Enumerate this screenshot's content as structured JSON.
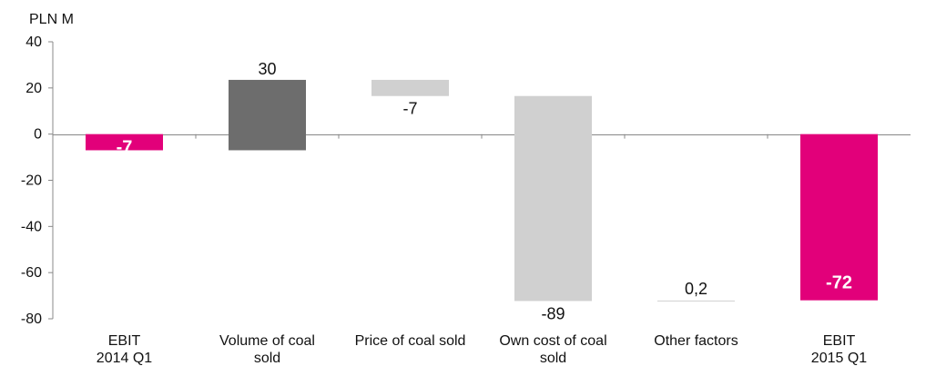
{
  "chart_data": {
    "type": "bar",
    "subtype": "waterfall",
    "unit_label": "PLN M",
    "ylim": [
      -80,
      40
    ],
    "yticks": [
      40,
      20,
      0,
      -20,
      -40,
      -60,
      -80
    ],
    "grid": false,
    "categories": [
      [
        "EBIT",
        "2014 Q1"
      ],
      [
        "Volume of coal",
        "sold"
      ],
      [
        "Price of coal sold"
      ],
      [
        "Own cost of coal",
        "sold"
      ],
      [
        "Other factors"
      ],
      [
        "EBIT",
        "2015 Q1"
      ]
    ],
    "bars": [
      {
        "kind": "total",
        "start": 0,
        "end": -7,
        "label": "-7",
        "color": "#e2007a"
      },
      {
        "kind": "increase",
        "start": -7,
        "end": 23.5,
        "label": "30",
        "color": "#6d6d6d"
      },
      {
        "kind": "decrease",
        "start": 23.5,
        "end": 16.5,
        "label": "-7",
        "color": "#d0d0d0"
      },
      {
        "kind": "decrease",
        "start": 16.5,
        "end": -72.3,
        "label": "-89",
        "color": "#d0d0d0"
      },
      {
        "kind": "change",
        "start": -72.3,
        "end": -72.1,
        "label": "0,2",
        "color": "#d0d0d0"
      },
      {
        "kind": "total",
        "start": 0,
        "end": -72,
        "label": "-72",
        "color": "#e2007a"
      }
    ]
  }
}
